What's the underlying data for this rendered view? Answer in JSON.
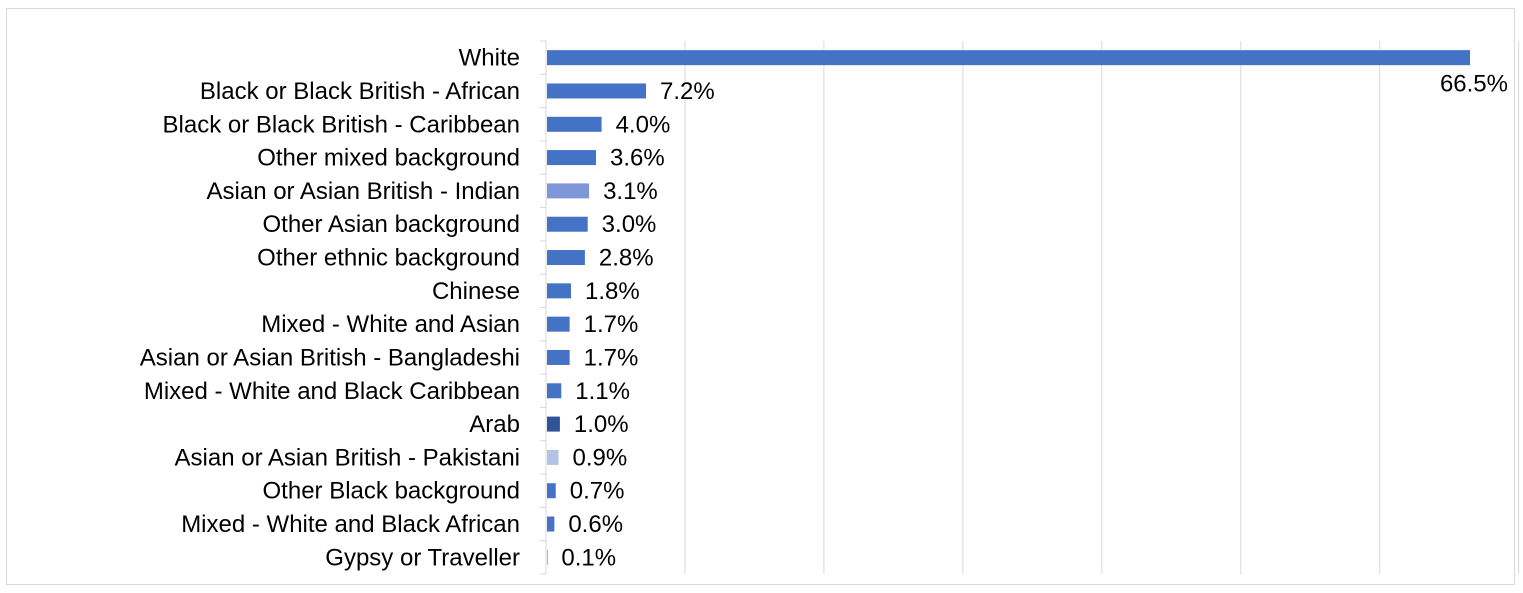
{
  "chart_data": {
    "type": "bar",
    "orientation": "horizontal",
    "title": "",
    "xlabel": "",
    "ylabel": "",
    "xlim": [
      0,
      70
    ],
    "grid": true,
    "legend": "none",
    "value_suffix": "%",
    "categories": [
      "White",
      "Black or Black British - African",
      "Black or Black British - Caribbean",
      "Other mixed background",
      "Asian or Asian British - Indian",
      "Other Asian background",
      "Other ethnic background",
      "Chinese",
      "Mixed - White and Asian",
      "Asian or Asian British - Bangladeshi",
      "Mixed - White and Black Caribbean",
      "Arab",
      "Asian or Asian British - Pakistani",
      "Other Black background",
      "Mixed - White and Black African",
      "Gypsy or Traveller"
    ],
    "values": [
      66.5,
      7.2,
      4.0,
      3.6,
      3.1,
      3.0,
      2.8,
      1.8,
      1.7,
      1.7,
      1.1,
      1.0,
      0.9,
      0.7,
      0.6,
      0.1
    ],
    "labels": [
      "66.5%",
      "7.2%",
      "4.0%",
      "3.6%",
      "3.1%",
      "3.0%",
      "2.8%",
      "1.8%",
      "1.7%",
      "1.7%",
      "1.1%",
      "1.0%",
      "0.9%",
      "0.7%",
      "0.6%",
      "0.1%"
    ],
    "colors": [
      "#4472c4",
      "#4472c4",
      "#4472c4",
      "#4472c4",
      "#7f97d6",
      "#4472c4",
      "#4472c4",
      "#4472c4",
      "#4472c4",
      "#4472c4",
      "#4472c4",
      "#2f5597",
      "#b4c2e3",
      "#4472c4",
      "#4472c4",
      "#4472c4"
    ]
  }
}
